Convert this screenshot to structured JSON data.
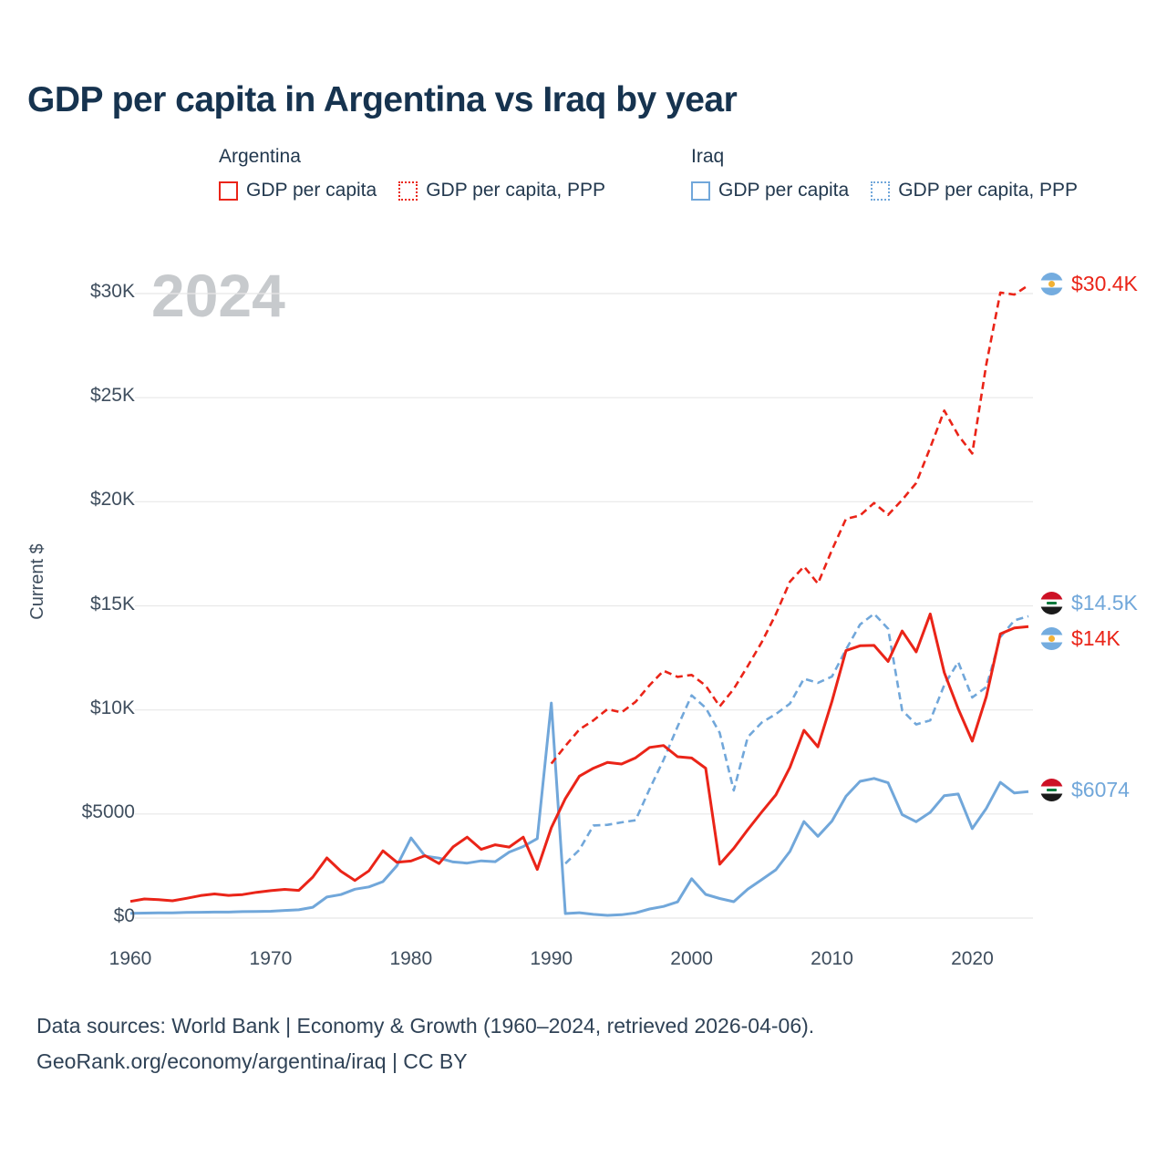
{
  "title": "GDP per capita in Argentina vs Iraq by year",
  "watermark_year": "2024",
  "y_axis_title": "Current $",
  "colors": {
    "argentina_red": "#ea2418",
    "iraq_blue": "#71a7da",
    "title_text": "#16334f",
    "body_text": "#2f4256",
    "grid": "#e8e8e8",
    "watermark": "#c7cacd"
  },
  "legend": {
    "groups": [
      {
        "label": "Argentina",
        "items": [
          {
            "label": "GDP per capita",
            "style": "solid",
            "color": "#ea2418"
          },
          {
            "label": "GDP per capita, PPP",
            "style": "dotted",
            "color": "#ea2418"
          }
        ]
      },
      {
        "label": "Iraq",
        "items": [
          {
            "label": "GDP per capita",
            "style": "solid",
            "color": "#71a7da"
          },
          {
            "label": "GDP per capita, PPP",
            "style": "dotted",
            "color": "#71a7da"
          }
        ]
      }
    ]
  },
  "chart_data": {
    "type": "line",
    "title": "GDP per capita in Argentina vs Iraq by year",
    "xlabel": "",
    "ylabel": "Current $",
    "x_range": [
      1960,
      2024
    ],
    "y_range": [
      0,
      30000
    ],
    "grid": "horizontal",
    "x_ticks": [
      {
        "value": 1960,
        "label": "1960"
      },
      {
        "value": 1970,
        "label": "1970"
      },
      {
        "value": 1980,
        "label": "1980"
      },
      {
        "value": 1990,
        "label": "1990"
      },
      {
        "value": 2000,
        "label": "2000"
      },
      {
        "value": 2010,
        "label": "2010"
      },
      {
        "value": 2020,
        "label": "2020"
      }
    ],
    "y_ticks": [
      {
        "value": 0,
        "label": "$0"
      },
      {
        "value": 5000,
        "label": "$5000"
      },
      {
        "value": 10000,
        "label": "$10K"
      },
      {
        "value": 15000,
        "label": "$15K"
      },
      {
        "value": 20000,
        "label": "$20K"
      },
      {
        "value": 25000,
        "label": "$25K"
      },
      {
        "value": 30000,
        "label": "$30K"
      }
    ],
    "series": [
      {
        "id": "iraq-gdp",
        "name": "Iraq GDP per capita",
        "country": "Iraq",
        "color": "#71a7da",
        "dash": "solid",
        "start_year": 1960,
        "end_value_label": "$6074",
        "values": [
          230,
          240,
          250,
          250,
          270,
          280,
          290,
          290,
          310,
          320,
          330,
          370,
          400,
          520,
          1010,
          1130,
          1390,
          1500,
          1750,
          2520,
          3850,
          2980,
          2880,
          2700,
          2640,
          2750,
          2710,
          3170,
          3440,
          3820,
          10330,
          220,
          260,
          180,
          130,
          160,
          250,
          440,
          560,
          780,
          1890,
          1140,
          940,
          790,
          1390,
          1850,
          2320,
          3200,
          4640,
          3930,
          4660,
          5850,
          6570,
          6710,
          6500,
          4970,
          4630,
          5080,
          5880,
          5960,
          4300,
          5270,
          6520,
          6010,
          6074
        ]
      },
      {
        "id": "iraq-ppp",
        "name": "Iraq GDP per capita, PPP",
        "country": "Iraq",
        "color": "#71a7da",
        "dash": "dashed",
        "start_year": 1991,
        "end_value_label": "$14.5K",
        "values": [
          2620,
          3280,
          4450,
          4480,
          4600,
          4700,
          6200,
          7600,
          9200,
          10700,
          10100,
          8900,
          6130,
          8700,
          9400,
          9800,
          10300,
          11500,
          11300,
          11600,
          12900,
          14100,
          14620,
          13900,
          9980,
          9300,
          9500,
          11200,
          12300,
          10600,
          11100,
          13500,
          14300,
          14500
        ]
      },
      {
        "id": "argentina-gdp",
        "name": "Argentina GDP per capita",
        "country": "Argentina",
        "color": "#ea2418",
        "dash": "solid",
        "start_year": 1960,
        "end_value_label": "$14K",
        "values": [
          800,
          920,
          890,
          830,
          950,
          1080,
          1160,
          1090,
          1130,
          1240,
          1320,
          1380,
          1330,
          1970,
          2890,
          2250,
          1810,
          2270,
          3230,
          2680,
          2740,
          3000,
          2620,
          3420,
          3890,
          3300,
          3520,
          3410,
          3890,
          2340,
          4340,
          5740,
          6820,
          7200,
          7480,
          7400,
          7700,
          8200,
          8290,
          7750,
          7690,
          7200,
          2590,
          3350,
          4250,
          5100,
          5920,
          7240,
          9020,
          8230,
          10410,
          12850,
          13080,
          13100,
          12330,
          13790,
          12790,
          14610,
          11800,
          10050,
          8500,
          10640,
          13650,
          13940,
          14000
        ]
      },
      {
        "id": "argentina-ppp",
        "name": "Argentina GDP per capita, PPP",
        "country": "Argentina",
        "color": "#ea2418",
        "dash": "dashed",
        "start_year": 1990,
        "end_value_label": "$30.4K",
        "values": [
          7420,
          8270,
          9060,
          9500,
          10040,
          9880,
          10390,
          11190,
          11880,
          11590,
          11680,
          11170,
          10170,
          11010,
          12110,
          13260,
          14600,
          16160,
          16890,
          16070,
          17680,
          19180,
          19340,
          19940,
          19370,
          20090,
          20900,
          22600,
          24380,
          23200,
          22320,
          26600,
          30050,
          29950,
          30400
        ]
      }
    ]
  },
  "end_labels": [
    {
      "text": "$30.4K",
      "flag": "argentina",
      "color": "#ea2418"
    },
    {
      "text": "$14.5K",
      "flag": "iraq",
      "color": "#71a7da"
    },
    {
      "text": "$14K",
      "flag": "argentina",
      "color": "#ea2418"
    },
    {
      "text": "$6074",
      "flag": "iraq",
      "color": "#71a7da"
    }
  ],
  "footer": {
    "line1": "Data sources: World Bank | Economy & Growth (1960–2024, retrieved 2026-04-06).",
    "line2": "GeoRank.org/economy/argentina/iraq | CC BY"
  }
}
